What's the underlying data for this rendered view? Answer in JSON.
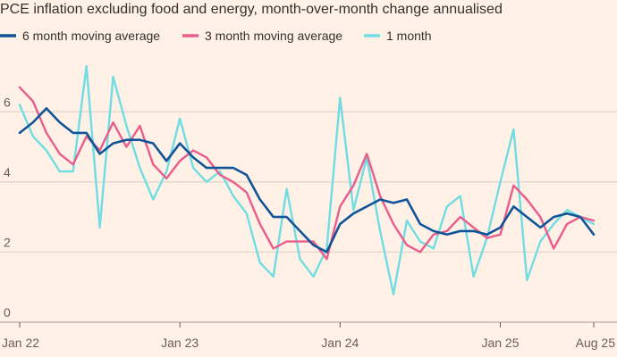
{
  "chart_data": {
    "type": "line",
    "title": "PCE inflation excluding food and energy, month-over-month change annualised",
    "xlabel": "",
    "ylabel": "",
    "ylim": [
      0,
      7
    ],
    "y_ticks": [
      "0",
      "2",
      "4",
      "6"
    ],
    "x_ticks": [
      "Jan 22",
      "Jan 23",
      "Jan 24",
      "Jan 25",
      "Aug 25"
    ],
    "x": [
      "2022-01",
      "2022-02",
      "2022-03",
      "2022-04",
      "2022-05",
      "2022-06",
      "2022-07",
      "2022-08",
      "2022-09",
      "2022-10",
      "2022-11",
      "2022-12",
      "2023-01",
      "2023-02",
      "2023-03",
      "2023-04",
      "2023-05",
      "2023-06",
      "2023-07",
      "2023-08",
      "2023-09",
      "2023-10",
      "2023-11",
      "2023-12",
      "2024-01",
      "2024-02",
      "2024-03",
      "2024-04",
      "2024-05",
      "2024-06",
      "2024-07",
      "2024-08",
      "2024-09",
      "2024-10",
      "2024-11",
      "2024-12",
      "2025-01",
      "2025-02",
      "2025-03",
      "2025-04",
      "2025-05",
      "2025-06",
      "2025-07",
      "2025-08"
    ],
    "grid": true,
    "legend_position": "top",
    "series": [
      {
        "name": "6 month moving average",
        "color": "#0f5499",
        "values": [
          5.4,
          5.7,
          6.1,
          5.7,
          5.4,
          5.4,
          4.8,
          5.1,
          5.2,
          5.2,
          5.1,
          4.6,
          5.1,
          4.7,
          4.4,
          4.4,
          4.4,
          4.2,
          3.5,
          3.0,
          3.0,
          2.6,
          2.2,
          2.0,
          2.8,
          3.1,
          3.3,
          3.5,
          3.4,
          3.5,
          2.8,
          2.6,
          2.5,
          2.6,
          2.6,
          2.5,
          2.7,
          3.3,
          3.0,
          2.7,
          3.0,
          3.1,
          3.0,
          2.5
        ]
      },
      {
        "name": "3 month moving average",
        "color": "#e95d8c",
        "values": [
          6.7,
          6.3,
          5.4,
          4.8,
          4.5,
          5.3,
          4.9,
          5.7,
          5.0,
          5.6,
          4.5,
          4.1,
          4.6,
          4.9,
          4.7,
          4.2,
          4.0,
          3.7,
          2.8,
          2.1,
          2.3,
          2.3,
          2.3,
          1.8,
          3.3,
          3.9,
          4.8,
          3.6,
          2.8,
          2.2,
          2.0,
          2.5,
          2.6,
          3.0,
          2.7,
          2.4,
          2.5,
          3.9,
          3.5,
          3.0,
          2.1,
          2.8,
          3.0,
          2.9
        ]
      },
      {
        "name": "1 month",
        "color": "#70dce3",
        "values": [
          6.2,
          5.3,
          4.9,
          4.3,
          4.3,
          7.3,
          2.7,
          7.0,
          5.6,
          4.4,
          3.5,
          4.3,
          5.8,
          4.4,
          4.0,
          4.3,
          3.6,
          3.1,
          1.7,
          1.3,
          3.8,
          1.8,
          1.3,
          2.1,
          6.4,
          3.2,
          4.7,
          2.6,
          0.8,
          2.9,
          2.3,
          2.1,
          3.3,
          3.6,
          1.3,
          2.4,
          4.0,
          5.5,
          1.2,
          2.3,
          2.8,
          3.2,
          3.0,
          2.8
        ]
      }
    ]
  }
}
